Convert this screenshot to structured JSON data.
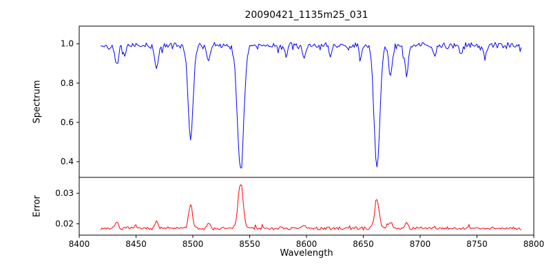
{
  "figure": {
    "title": "20090421_1135m25_031",
    "xlabel": "Wavelength",
    "ylabel_top": "Spectrum",
    "ylabel_bottom": "Error",
    "background": "#ffffff",
    "frame_color": "#000000"
  },
  "chart_data": {
    "type": "line",
    "title": "20090421_1135m25_031",
    "xlabel": "Wavelength",
    "xlim": [
      8400,
      8800
    ],
    "x_range": [
      8419,
      8789
    ],
    "step": 1,
    "grid": false,
    "legend": "none",
    "x_ticks": {
      "values": [
        8400,
        8450,
        8500,
        8550,
        8600,
        8650,
        8700,
        8750,
        8800
      ],
      "labels": [
        "8400",
        "8450",
        "8500",
        "8550",
        "8600",
        "8650",
        "8700",
        "8750",
        "8800"
      ]
    },
    "panels": [
      {
        "name": "spectrum",
        "ylabel": "Spectrum",
        "color": "#0000ff",
        "ylim": [
          0.32,
          1.09
        ],
        "y_ticks": {
          "values": [
            0.4,
            0.6,
            0.8,
            1.0
          ],
          "labels": [
            "0.4",
            "0.6",
            "0.8",
            "1.0"
          ]
        },
        "baseline": 0.99,
        "noise_amp": 0.018,
        "spike": {
          "prob": 0.05,
          "max": 0.045,
          "sign": -1
        },
        "seed": 42,
        "features": [
          {
            "center": 8433,
            "amplitude": -0.1,
            "width": 1.5
          },
          {
            "center": 8440,
            "amplitude": -0.05,
            "width": 1.2
          },
          {
            "center": 8468,
            "amplitude": -0.12,
            "width": 1.5
          },
          {
            "center": 8498,
            "amplitude": -0.47,
            "width": 2.2
          },
          {
            "center": 8514,
            "amplitude": -0.08,
            "width": 1.5
          },
          {
            "center": 8542,
            "amplitude": -0.63,
            "width": 2.8
          },
          {
            "center": 8582,
            "amplitude": -0.05,
            "width": 1.2
          },
          {
            "center": 8598,
            "amplitude": -0.07,
            "width": 1.3
          },
          {
            "center": 8621,
            "amplitude": -0.06,
            "width": 1.2
          },
          {
            "center": 8648,
            "amplitude": -0.05,
            "width": 1.2
          },
          {
            "center": 8662,
            "amplitude": -0.62,
            "width": 2.5
          },
          {
            "center": 8674,
            "amplitude": -0.16,
            "width": 1.5
          },
          {
            "center": 8688,
            "amplitude": -0.15,
            "width": 1.5
          },
          {
            "center": 8713,
            "amplitude": -0.05,
            "width": 1.2
          },
          {
            "center": 8736,
            "amplitude": -0.05,
            "width": 1.2
          },
          {
            "center": 8757,
            "amplitude": -0.06,
            "width": 1.2
          }
        ]
      },
      {
        "name": "error",
        "ylabel": "Error",
        "color": "#ff0000",
        "ylim": [
          0.0163,
          0.0352
        ],
        "y_ticks": {
          "values": [
            0.02,
            0.03
          ],
          "labels": [
            "0.02",
            "0.03"
          ]
        },
        "baseline": 0.0185,
        "noise_amp": 0.0006,
        "spike": {
          "prob": 0.04,
          "max": 0.0015,
          "sign": 1
        },
        "seed": 7,
        "features": [
          {
            "center": 8433,
            "amplitude": 0.002,
            "width": 1.5
          },
          {
            "center": 8468,
            "amplitude": 0.0022,
            "width": 1.5
          },
          {
            "center": 8498,
            "amplitude": 0.0075,
            "width": 1.8
          },
          {
            "center": 8514,
            "amplitude": 0.0018,
            "width": 1.5
          },
          {
            "center": 8542,
            "amplitude": 0.0148,
            "width": 2.2
          },
          {
            "center": 8598,
            "amplitude": 0.001,
            "width": 1.3
          },
          {
            "center": 8662,
            "amplitude": 0.0095,
            "width": 2.0
          },
          {
            "center": 8674,
            "amplitude": 0.002,
            "width": 1.5
          },
          {
            "center": 8688,
            "amplitude": 0.0018,
            "width": 1.5
          }
        ]
      }
    ]
  }
}
